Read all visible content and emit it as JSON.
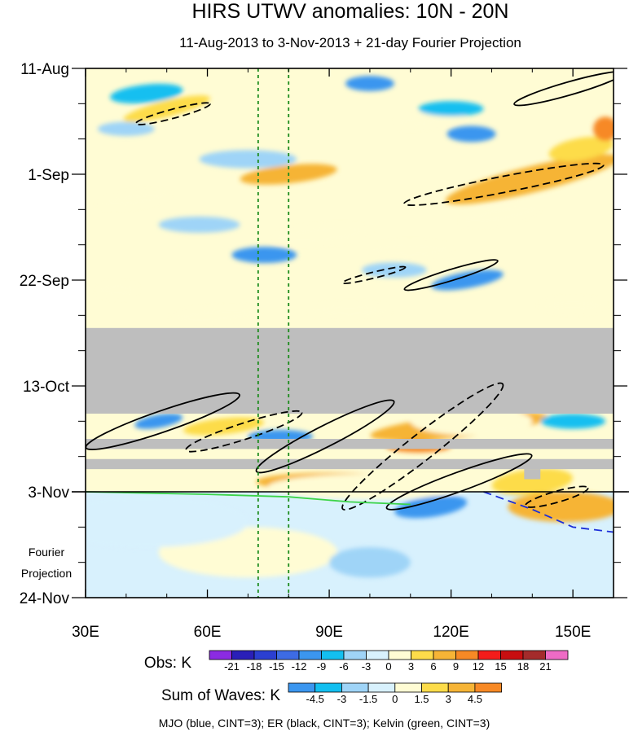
{
  "chart_data": {
    "type": "heatmap",
    "title": "HIRS UTWV anomalies: 10N - 20N",
    "subtitle": "11-Aug-2013 to 3-Nov-2013 + 21-day Fourier Projection",
    "xlabel": "",
    "ylabel": "",
    "x_axis": {
      "unit": "longitude",
      "range": [
        30,
        160
      ],
      "ticks": [
        {
          "value": 30,
          "label": "30E"
        },
        {
          "value": 60,
          "label": "60E"
        },
        {
          "value": 90,
          "label": "90E"
        },
        {
          "value": 120,
          "label": "120E"
        },
        {
          "value": 150,
          "label": "150E"
        }
      ]
    },
    "y_axis": {
      "unit": "day index from 11-Aug-2013",
      "range": [
        0,
        105
      ],
      "reversed": true,
      "ticks": [
        {
          "value": 0,
          "label": "11-Aug"
        },
        {
          "value": 21,
          "label": "1-Sep"
        },
        {
          "value": 42,
          "label": "22-Sep"
        },
        {
          "value": 63,
          "label": "13-Oct"
        },
        {
          "value": 84,
          "label": "3-Nov"
        },
        {
          "value": 105,
          "label": "24-Nov"
        }
      ],
      "projection_label": [
        "Fourier",
        "Projection"
      ],
      "projection_start_day": 84
    },
    "reference_lines": [
      {
        "lon": 72.5,
        "style": "dashed",
        "color": "#1e8c1e"
      },
      {
        "lon": 80,
        "style": "dashed",
        "color": "#1e8c1e"
      }
    ],
    "missing_data_bands": [
      {
        "day_start": 51.5,
        "day_end": 68.5,
        "lon_start": 30,
        "lon_end": 160
      },
      {
        "day_start": 73.5,
        "day_end": 75.5,
        "lon_start": 30,
        "lon_end": 160
      },
      {
        "day_start": 77.5,
        "day_end": 79.5,
        "lon_start": 30,
        "lon_end": 160
      },
      {
        "day_start": 79.5,
        "day_end": 81.5,
        "lon_start": 138,
        "lon_end": 142
      }
    ],
    "anomaly_features": [
      {
        "lon": 50,
        "day": 8,
        "rx": 11,
        "ry": 1.6,
        "angle": -14,
        "level": 6
      },
      {
        "lon": 42,
        "day": 26,
        "rx": 9,
        "ry": 1.4,
        "angle": -8,
        "level": 3
      },
      {
        "lon": 80,
        "day": 21,
        "rx": 12,
        "ry": 1.8,
        "angle": -6,
        "level": 9
      },
      {
        "lon": 140,
        "day": 22,
        "rx": 22,
        "ry": 2.6,
        "angle": -14,
        "level": 9
      },
      {
        "lon": 152,
        "day": 16,
        "rx": 8,
        "ry": 2.2,
        "angle": -10,
        "level": 6
      },
      {
        "lon": 158,
        "day": 12,
        "rx": 3,
        "ry": 2.4,
        "angle": 0,
        "level": 12
      },
      {
        "lon": 88,
        "day": 33,
        "rx": 12,
        "ry": 1.8,
        "angle": -5,
        "level": 3
      },
      {
        "lon": 110,
        "day": 36,
        "rx": 10,
        "ry": 1.6,
        "angle": 0,
        "level": 3
      },
      {
        "lon": 132,
        "day": 29,
        "rx": 10,
        "ry": 1.6,
        "angle": -10,
        "level": 3
      },
      {
        "lon": 115,
        "day": 10,
        "rx": 9,
        "ry": 1.5,
        "angle": -8,
        "level": 3
      },
      {
        "lon": 62,
        "day": 49,
        "rx": 11,
        "ry": 1.5,
        "angle": -4,
        "level": 3
      },
      {
        "lon": 38,
        "day": 44,
        "rx": 5,
        "ry": 1.5,
        "angle": 0,
        "level": 3
      },
      {
        "lon": 95,
        "day": 48,
        "rx": 10,
        "ry": 1.4,
        "angle": 0,
        "level": 3
      },
      {
        "lon": 150,
        "day": 47,
        "rx": 8,
        "ry": 1.4,
        "angle": 0,
        "level": 3
      },
      {
        "lon": 64,
        "day": 71,
        "rx": 10,
        "ry": 1.6,
        "angle": -6,
        "level": 6
      },
      {
        "lon": 122,
        "day": 71,
        "rx": 22,
        "ry": 2.2,
        "angle": -6,
        "level": 9
      },
      {
        "lon": 112,
        "day": 75,
        "rx": 8,
        "ry": 1.2,
        "angle": 0,
        "level": 12
      },
      {
        "lon": 90,
        "day": 82,
        "rx": 18,
        "ry": 1.8,
        "angle": 0,
        "level": 9
      },
      {
        "lon": 140,
        "day": 82,
        "rx": 10,
        "ry": 2.5,
        "angle": -6,
        "level": 6
      },
      {
        "lon": 148,
        "day": 87,
        "rx": 14,
        "ry": 3,
        "angle": 0,
        "level": 4.5
      },
      {
        "lon": 100,
        "day": 83,
        "rx": 25,
        "ry": 2.5,
        "angle": 0,
        "level": 3
      },
      {
        "lon": 125,
        "day": 70,
        "rx": 15,
        "ry": 2.8,
        "angle": 0,
        "level": 3
      },
      {
        "lon": 70,
        "day": 96,
        "rx": 22,
        "ry": 5,
        "angle": 0,
        "level": 1.5
      },
      {
        "lon": 100,
        "day": 3,
        "rx": 6,
        "ry": 1.5,
        "angle": 0,
        "level": -9
      },
      {
        "lon": 120,
        "day": 8,
        "rx": 8,
        "ry": 1.5,
        "angle": 0,
        "level": -6
      },
      {
        "lon": 125,
        "day": 13,
        "rx": 6,
        "ry": 1.6,
        "angle": 0,
        "level": -9
      },
      {
        "lon": 45,
        "day": 5,
        "rx": 9,
        "ry": 1.8,
        "angle": -6,
        "level": -6
      },
      {
        "lon": 40,
        "day": 12,
        "rx": 7,
        "ry": 1.4,
        "angle": 0,
        "level": -3
      },
      {
        "lon": 70,
        "day": 18,
        "rx": 12,
        "ry": 1.8,
        "angle": 0,
        "level": -3
      },
      {
        "lon": 58,
        "day": 31,
        "rx": 10,
        "ry": 1.6,
        "angle": 0,
        "level": -3
      },
      {
        "lon": 74,
        "day": 37,
        "rx": 8,
        "ry": 1.6,
        "angle": 0,
        "level": -9
      },
      {
        "lon": 124,
        "day": 42,
        "rx": 9,
        "ry": 1.6,
        "angle": -10,
        "level": -9
      },
      {
        "lon": 106,
        "day": 40,
        "rx": 8,
        "ry": 1.5,
        "angle": 0,
        "level": -3
      },
      {
        "lon": 48,
        "day": 70,
        "rx": 6,
        "ry": 1.3,
        "angle": -10,
        "level": -9
      },
      {
        "lon": 78,
        "day": 73,
        "rx": 8,
        "ry": 1.3,
        "angle": 0,
        "level": -9
      },
      {
        "lon": 150,
        "day": 70,
        "rx": 8,
        "ry": 1.5,
        "angle": 0,
        "level": -6
      },
      {
        "lon": 115,
        "day": 87,
        "rx": 9,
        "ry": 2,
        "angle": -8,
        "level": -4.5
      },
      {
        "lon": 100,
        "day": 98,
        "rx": 10,
        "ry": 3,
        "angle": 0,
        "level": -1.5
      },
      {
        "lon": 45,
        "day": 90,
        "rx": 25,
        "ry": 5,
        "angle": 0,
        "level": -0.5
      }
    ],
    "wave_contours": [
      {
        "wave": "ER",
        "color": "#000000",
        "dashed": false,
        "lon": 149,
        "day": 4,
        "rx": 14,
        "ry": 1.3,
        "angle": -16
      },
      {
        "wave": "ER",
        "color": "#000000",
        "dashed": true,
        "lon": 51.5,
        "day": 9,
        "rx": 9.5,
        "ry": 0.9,
        "angle": -15
      },
      {
        "wave": "ER",
        "color": "#000000",
        "dashed": true,
        "lon": 133,
        "day": 23,
        "rx": 25,
        "ry": 1.6,
        "angle": -11
      },
      {
        "wave": "ER",
        "color": "#000000",
        "dashed": true,
        "lon": 101,
        "day": 41,
        "rx": 8,
        "ry": 0.6,
        "angle": -14
      },
      {
        "wave": "ER",
        "color": "#000000",
        "dashed": false,
        "lon": 120,
        "day": 41,
        "rx": 12,
        "ry": 1.1,
        "angle": -17
      },
      {
        "wave": "ER",
        "color": "#000000",
        "dashed": false,
        "lon": 49,
        "day": 70,
        "rx": 20,
        "ry": 2.1,
        "angle": -19
      },
      {
        "wave": "ER",
        "color": "#000000",
        "dashed": true,
        "lon": 69,
        "day": 72,
        "rx": 15,
        "ry": 1.6,
        "angle": -18
      },
      {
        "wave": "ER",
        "color": "#000000",
        "dashed": false,
        "lon": 89,
        "day": 73,
        "rx": 19,
        "ry": 2.1,
        "angle": -27
      },
      {
        "wave": "ER",
        "color": "#000000",
        "dashed": true,
        "lon": 113,
        "day": 75,
        "rx": 25,
        "ry": 2.6,
        "angle": -38
      },
      {
        "wave": "ER",
        "color": "#000000",
        "dashed": false,
        "lon": 122,
        "day": 82,
        "rx": 19,
        "ry": 1.9,
        "angle": -20
      },
      {
        "wave": "ER",
        "color": "#000000",
        "dashed": true,
        "lon": 146,
        "day": 85,
        "rx": 8,
        "ry": 1.1,
        "angle": -16
      },
      {
        "wave": "MJO",
        "color": "#1c2ed9",
        "dashed": true,
        "type": "line",
        "points": [
          [
            128,
            84
          ],
          [
            140,
            87.5
          ],
          [
            150,
            91
          ],
          [
            160,
            92
          ]
        ]
      },
      {
        "wave": "Kelvin",
        "color": "#3cd44a",
        "dashed": false,
        "type": "line",
        "points": [
          [
            30,
            84
          ],
          [
            60,
            84.5
          ],
          [
            80,
            85
          ],
          [
            95,
            86
          ],
          [
            110,
            86.5
          ]
        ]
      }
    ]
  },
  "colorbars": {
    "obs": {
      "label": "Obs: K",
      "ticks": [
        "-21",
        "-18",
        "-15",
        "-12",
        "-9",
        "-6",
        "-3",
        "0",
        "3",
        "6",
        "9",
        "12",
        "15",
        "18",
        "21"
      ],
      "colors": [
        "#8b2be2",
        "#2a1fb8",
        "#2b3fd1",
        "#3d6be4",
        "#3b96ef",
        "#13bff0",
        "#9fd4f7",
        "#d8f1fd",
        "#fffcd4",
        "#fddc4a",
        "#f6b436",
        "#f78925",
        "#f41c1b",
        "#c80e10",
        "#a42b2b",
        "#ee6bc5"
      ]
    },
    "waves": {
      "label": "Sum of Waves: K",
      "ticks": [
        "-4.5",
        "-3",
        "-1.5",
        "0",
        "1.5",
        "3",
        "4.5"
      ],
      "colors": [
        "#3b96ef",
        "#13bff0",
        "#9fd4f7",
        "#d8f1fd",
        "#fffcd4",
        "#fddc4a",
        "#f6b436",
        "#f78925"
      ]
    }
  },
  "legend_note": "MJO (blue, CINT=3); ER (black, CINT=3); Kelvin (green, CINT=3)"
}
